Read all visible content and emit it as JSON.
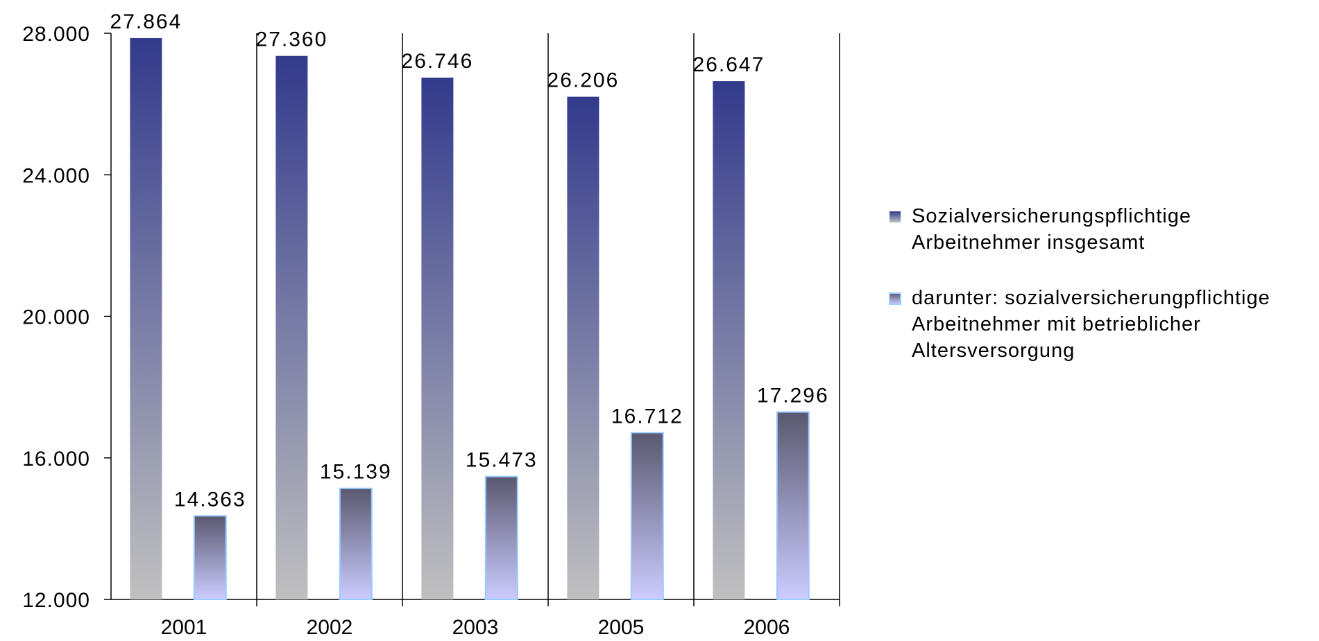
{
  "chart_data": {
    "type": "bar",
    "categories": [
      "2001",
      "2002",
      "2003",
      "2005",
      "2006"
    ],
    "series": [
      {
        "name_lines": [
          "Sozialversicherungspflichtige",
          "Arbeitnehmer insgesamt"
        ],
        "values": [
          27864,
          27360,
          26746,
          26206,
          26647
        ],
        "labels": [
          "27.864",
          "27.360",
          "26.746",
          "26.206",
          "26.647"
        ],
        "color_top": "#323a8c",
        "color_bottom": "#c0c0c0"
      },
      {
        "name_lines": [
          "darunter: sozialversicherungpflichtige",
          "Arbeitnehmer mit betrieblicher",
          "Altersversorgung"
        ],
        "values": [
          14363,
          15139,
          15473,
          16712,
          17296
        ],
        "labels": [
          "14.363",
          "15.139",
          "15.473",
          "16.712",
          "17.296"
        ],
        "color_top": "#5a5870",
        "color_bottom": "#ccccff",
        "border": "#99ccff"
      }
    ],
    "ylim": [
      12000,
      28000
    ],
    "yticks": [
      12000,
      16000,
      20000,
      24000,
      28000
    ],
    "ytick_labels": [
      "12.000",
      "16.000",
      "20.000",
      "24.000",
      "28.000"
    ],
    "legend_position": "right",
    "grid": false
  }
}
